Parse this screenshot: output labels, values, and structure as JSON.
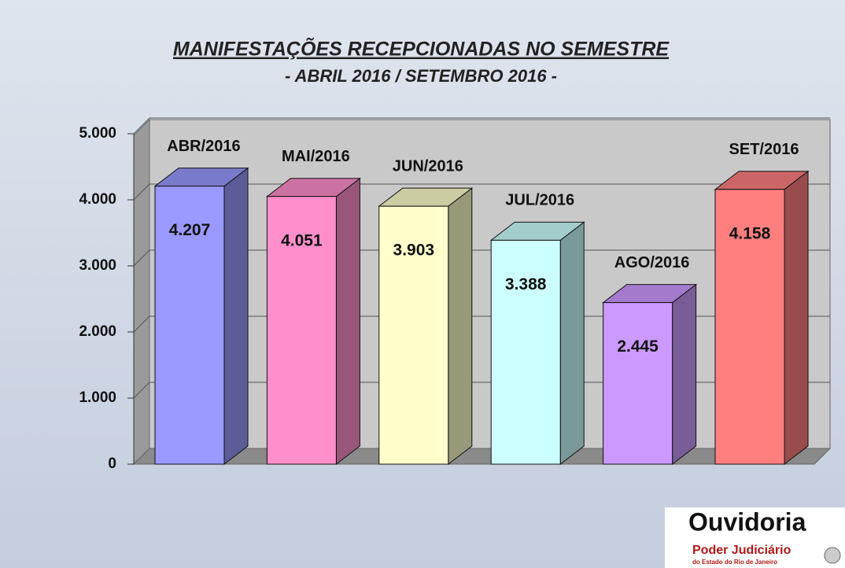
{
  "chart_data": {
    "type": "bar3d",
    "title": "MANIFESTAÇÕES RECEPCIONADAS  NO SEMESTRE",
    "subtitle": "- ABRIL  2016 / SETEMBRO 2016 -",
    "categories": [
      "ABR/2016",
      "MAI/2016",
      "JUN/2016",
      "JUL/2016",
      "AGO/2016",
      "SET/2016"
    ],
    "values": [
      4207,
      4051,
      3903,
      3388,
      2445,
      4158
    ],
    "value_labels": [
      "4.207",
      "4.051",
      "3.903",
      "3.388",
      "2.445",
      "4.158"
    ],
    "colors": [
      "#9999ff",
      "#ff8fcc",
      "#ffffcc",
      "#ccffff",
      "#cc99ff",
      "#ff7f7f"
    ],
    "ylim": [
      0,
      5000
    ],
    "yticks": [
      0,
      {
        "value": 1000,
        "label": "1.000"
      },
      {
        "value": 2000,
        "label": "2.000"
      },
      {
        "value": 3000,
        "label": "3.000"
      },
      {
        "value": 4000,
        "label": "4.000"
      },
      {
        "value": 5000,
        "label": "5.000"
      }
    ],
    "grid": true
  },
  "logo": {
    "name": "Ouvidoria",
    "line1": "Poder Judiciário",
    "line2": "do Estado do Rio de Janeiro"
  }
}
